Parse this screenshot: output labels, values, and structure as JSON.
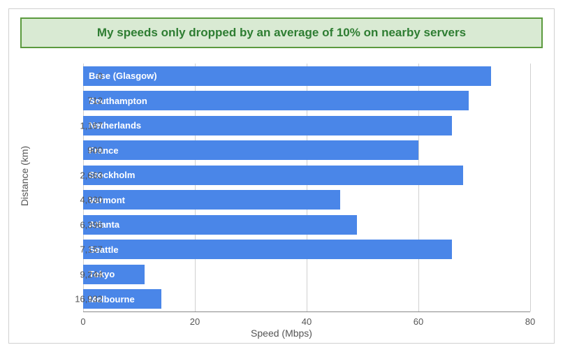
{
  "title": "My speeds only dropped by an average of 10% on nearby servers",
  "title_color": "#2e7d32",
  "title_bg": "#d9ead3",
  "title_border": "#5b9a3e",
  "chart": {
    "type": "bar-horizontal",
    "bar_color": "#4a86e8",
    "bar_label_color": "#ffffff",
    "background_color": "#ffffff",
    "grid_color": "#d0d0d0",
    "axis_text_color": "#555555",
    "xlim": [
      0,
      80
    ],
    "xtick_step": 20,
    "x_axis_title": "Speed (Mbps)",
    "y_axis_title": "Distance (km)",
    "label_fontsize": 13,
    "axis_title_fontsize": 14,
    "bar_label_fontsize": 13,
    "data": [
      {
        "distance": "0",
        "location": "Base (Glasgow)",
        "speed": 73
      },
      {
        "distance": "712",
        "location": "Southampton",
        "speed": 69
      },
      {
        "distance": "1,167",
        "location": "Netherlands",
        "speed": 66
      },
      {
        "distance": "900",
        "location": "France",
        "speed": 60
      },
      {
        "distance": "2,663",
        "location": "Stockholm",
        "speed": 68
      },
      {
        "distance": "4,830",
        "location": "Vermont",
        "speed": 46
      },
      {
        "distance": "6,396",
        "location": "Atlanta",
        "speed": 49
      },
      {
        "distance": "7,157",
        "location": "Seattle",
        "speed": 66
      },
      {
        "distance": "9,244",
        "location": "Tokyo",
        "speed": 11
      },
      {
        "distance": "16,932",
        "location": "Melbourne",
        "speed": 14
      }
    ]
  }
}
